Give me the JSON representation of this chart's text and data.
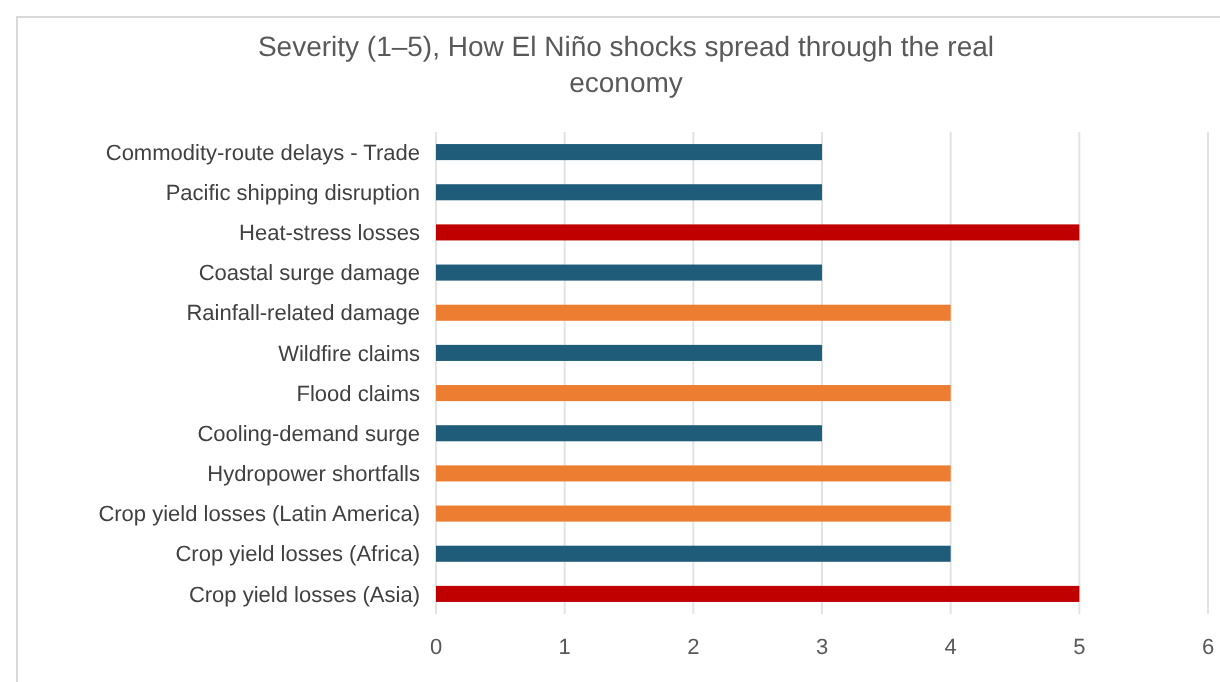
{
  "chart_data": {
    "type": "bar",
    "orientation": "horizontal",
    "title": "Severity (1–5), How El Niño shocks spread through the real economy",
    "categories": [
      "Commodity-route delays - Trade",
      "Pacific shipping disruption",
      "Heat-stress losses",
      "Coastal surge damage",
      "Rainfall-related damage",
      "Wildfire claims",
      "Flood claims",
      "Cooling-demand surge",
      "Hydropower shortfalls",
      "Crop yield losses (Latin America)",
      "Crop yield losses (Africa)",
      "Crop yield losses (Asia)"
    ],
    "values": [
      3,
      3,
      5,
      3,
      4,
      3,
      4,
      3,
      4,
      4,
      4,
      5
    ],
    "colors": [
      "#1f5c7a",
      "#1f5c7a",
      "#c00000",
      "#1f5c7a",
      "#ed7d31",
      "#1f5c7a",
      "#ed7d31",
      "#1f5c7a",
      "#ed7d31",
      "#ed7d31",
      "#1f5c7a",
      "#c00000"
    ],
    "xlim": [
      0,
      6
    ],
    "xticks": [
      0,
      1,
      2,
      3,
      4,
      5,
      6
    ],
    "grid": "x"
  }
}
